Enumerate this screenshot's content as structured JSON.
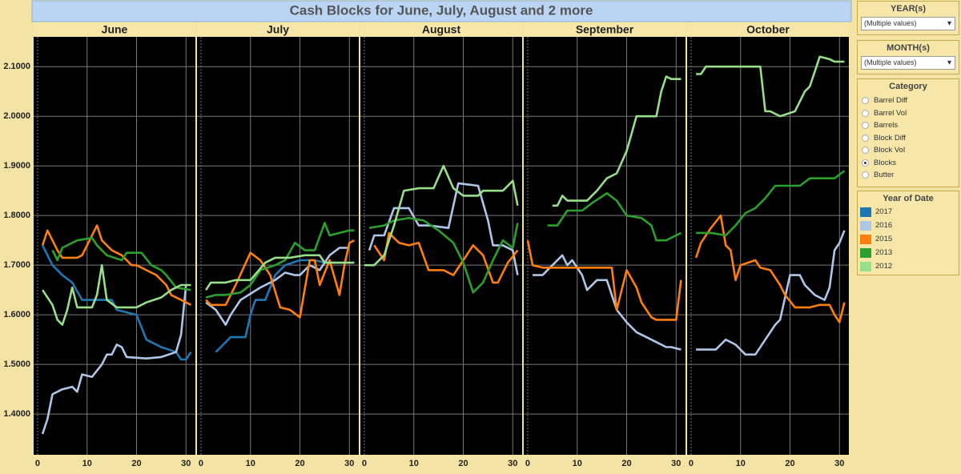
{
  "chart_data": {
    "type": "line",
    "title": "Cash Blocks for June, July, August and 2 more",
    "panels": [
      "June",
      "July",
      "August",
      "September",
      "October"
    ],
    "xlim": [
      -0.8,
      31.9
    ],
    "xticks": [
      0,
      10,
      20,
      30
    ],
    "ylim": [
      1.318,
      2.16
    ],
    "yticks": [
      {
        "value": 1.4,
        "label": "1.4000"
      },
      {
        "value": 1.5,
        "label": "1.5000"
      },
      {
        "value": 1.6,
        "label": "1.6000"
      },
      {
        "value": 1.7,
        "label": "1.7000"
      },
      {
        "value": 1.8,
        "label": "1.8000"
      },
      {
        "value": 1.9,
        "label": "1.9000"
      },
      {
        "value": 2.0,
        "label": "2.0000"
      },
      {
        "value": 2.1,
        "label": "2.1000"
      }
    ],
    "grid": true,
    "legend_title": "Year of Date",
    "series": [
      {
        "name": "2017",
        "color": "#1f77b4",
        "panels": [
          {
            "x": [
              1,
              3,
              5,
              7,
              9,
              12,
              15,
              16,
              20,
              22,
              25,
              28,
              29,
              30,
              31
            ],
            "values": [
              1.74,
              1.7,
              1.68,
              1.665,
              1.63,
              1.63,
              1.63,
              1.61,
              1.6,
              1.55,
              1.535,
              1.525,
              1.51,
              1.51,
              1.525
            ]
          },
          {
            "x": [
              3,
              4,
              6,
              9,
              10,
              11,
              13,
              15,
              17,
              20,
              23,
              25,
              27,
              30
            ],
            "values": [
              1.525,
              1.535,
              1.555,
              1.555,
              1.6,
              1.63,
              1.63,
              1.68,
              1.7,
              1.71,
              1.71,
              1.705,
              1.705,
              1.705
            ]
          },
          {
            "x": [],
            "values": []
          },
          {
            "x": [],
            "values": []
          },
          {
            "x": [],
            "values": []
          }
        ]
      },
      {
        "name": "2016",
        "color": "#aec7e8",
        "panels": [
          {
            "x": [
              1,
              2,
              3,
              5,
              7,
              8,
              9,
              11,
              13,
              14,
              15,
              16,
              17,
              18,
              22,
              25,
              28,
              29,
              30
            ],
            "values": [
              1.36,
              1.39,
              1.44,
              1.45,
              1.455,
              1.445,
              1.48,
              1.475,
              1.5,
              1.52,
              1.52,
              1.54,
              1.535,
              1.515,
              1.512,
              1.515,
              1.525,
              1.56,
              1.66
            ]
          },
          {
            "x": [
              1,
              3,
              5,
              6,
              8,
              12,
              15,
              17,
              19,
              20,
              22,
              24,
              26,
              28,
              30
            ],
            "values": [
              1.625,
              1.61,
              1.58,
              1.6,
              1.63,
              1.655,
              1.67,
              1.685,
              1.68,
              1.68,
              1.7,
              1.69,
              1.72,
              1.735,
              1.735
            ]
          },
          {
            "x": [
              1,
              2,
              4,
              6,
              9,
              11,
              13,
              17,
              19,
              23,
              25,
              26,
              28,
              30,
              31
            ],
            "values": [
              1.73,
              1.76,
              1.76,
              1.815,
              1.815,
              1.78,
              1.78,
              1.775,
              1.865,
              1.86,
              1.79,
              1.74,
              1.74,
              1.73,
              1.68
            ]
          },
          {
            "x": [
              1,
              3,
              5,
              7,
              8,
              9,
              11,
              12,
              14,
              16,
              18,
              20,
              22,
              24,
              26,
              28,
              29,
              31
            ],
            "values": [
              1.68,
              1.68,
              1.7,
              1.72,
              1.7,
              1.71,
              1.68,
              1.65,
              1.67,
              1.67,
              1.61,
              1.585,
              1.565,
              1.555,
              1.545,
              1.535,
              1.535,
              1.53
            ]
          },
          {
            "x": [
              1,
              4,
              5,
              7,
              9,
              11,
              13,
              15,
              17,
              18,
              20,
              22,
              23,
              25,
              27,
              28,
              29,
              30,
              31
            ],
            "values": [
              1.53,
              1.53,
              1.53,
              1.55,
              1.54,
              1.52,
              1.52,
              1.55,
              1.58,
              1.59,
              1.68,
              1.68,
              1.66,
              1.64,
              1.63,
              1.655,
              1.73,
              1.745,
              1.77
            ]
          }
        ]
      },
      {
        "name": "2015",
        "color": "#ff7f0e",
        "panels": [
          {
            "x": [
              1,
              2,
              4,
              5,
              8,
              9,
              10,
              12,
              13,
              15,
              17,
              19,
              20,
              22,
              24,
              26,
              27,
              29,
              31
            ],
            "values": [
              1.74,
              1.77,
              1.73,
              1.715,
              1.715,
              1.72,
              1.74,
              1.78,
              1.75,
              1.73,
              1.72,
              1.7,
              1.7,
              1.69,
              1.68,
              1.66,
              1.64,
              1.63,
              1.62
            ]
          },
          {
            "x": [
              1,
              2,
              5,
              7,
              10,
              12,
              14,
              16,
              18,
              20,
              22,
              23,
              24,
              26,
              28,
              29,
              30,
              31
            ],
            "values": [
              1.63,
              1.62,
              1.62,
              1.66,
              1.725,
              1.71,
              1.68,
              1.615,
              1.61,
              1.595,
              1.71,
              1.71,
              1.66,
              1.71,
              1.64,
              1.7,
              1.745,
              1.75
            ]
          },
          {
            "x": [
              2,
              4,
              5,
              7,
              9,
              11,
              13,
              16,
              18,
              20,
              22,
              24,
              26,
              27,
              29,
              31
            ],
            "values": [
              1.74,
              1.71,
              1.765,
              1.745,
              1.74,
              1.745,
              1.69,
              1.69,
              1.68,
              1.71,
              1.74,
              1.72,
              1.665,
              1.665,
              1.705,
              1.73
            ]
          },
          {
            "x": [
              0,
              1,
              3,
              17,
              18,
              20,
              22,
              23,
              24,
              25,
              26,
              30,
              31
            ],
            "values": [
              1.75,
              1.7,
              1.695,
              1.695,
              1.61,
              1.69,
              1.655,
              1.625,
              1.61,
              1.595,
              1.59,
              1.59,
              1.67
            ]
          },
          {
            "x": [
              1,
              2,
              4,
              6,
              7,
              8,
              9,
              10,
              13,
              14,
              16,
              18,
              19,
              21,
              24,
              26,
              28,
              29,
              30,
              31
            ],
            "values": [
              1.715,
              1.745,
              1.775,
              1.8,
              1.74,
              1.73,
              1.67,
              1.7,
              1.71,
              1.695,
              1.69,
              1.66,
              1.64,
              1.615,
              1.615,
              1.62,
              1.62,
              1.6,
              1.585,
              1.625
            ]
          }
        ]
      },
      {
        "name": "2013",
        "color": "#2ca02c",
        "panels": [
          {
            "x": [
              3,
              4,
              5,
              8,
              11,
              12,
              14,
              17,
              18,
              21,
              23,
              25,
              26,
              28,
              31
            ],
            "values": [
              1.73,
              1.71,
              1.735,
              1.75,
              1.755,
              1.74,
              1.72,
              1.71,
              1.725,
              1.725,
              1.7,
              1.69,
              1.68,
              1.655,
              1.65
            ]
          },
          {
            "x": [
              1,
              3,
              5,
              8,
              10,
              12,
              15,
              17,
              19,
              21,
              23,
              25,
              26,
              30,
              31
            ],
            "values": [
              1.635,
              1.64,
              1.64,
              1.645,
              1.66,
              1.69,
              1.7,
              1.71,
              1.745,
              1.73,
              1.73,
              1.785,
              1.76,
              1.77,
              1.77
            ]
          },
          {
            "x": [
              1,
              4,
              6,
              9,
              12,
              15,
              18,
              20,
              22,
              24,
              26,
              28,
              30,
              31
            ],
            "values": [
              1.775,
              1.78,
              1.79,
              1.795,
              1.79,
              1.77,
              1.745,
              1.705,
              1.645,
              1.665,
              1.71,
              1.75,
              1.735,
              1.785
            ]
          },
          {
            "x": [
              4,
              6,
              8,
              11,
              13,
              16,
              18,
              20,
              23,
              25,
              26,
              28,
              31
            ],
            "values": [
              1.78,
              1.78,
              1.81,
              1.81,
              1.825,
              1.845,
              1.83,
              1.8,
              1.795,
              1.78,
              1.75,
              1.75,
              1.765
            ]
          },
          {
            "x": [
              1,
              4,
              7,
              9,
              11,
              13,
              15,
              17,
              20,
              22,
              24,
              28,
              29,
              31
            ],
            "values": [
              1.765,
              1.765,
              1.76,
              1.78,
              1.805,
              1.815,
              1.835,
              1.86,
              1.86,
              1.86,
              1.875,
              1.875,
              1.875,
              1.89
            ]
          }
        ]
      },
      {
        "name": "2012",
        "color": "#98df8a",
        "panels": [
          {
            "x": [
              1,
              3,
              4,
              5,
              6,
              7,
              8,
              11,
              12,
              13,
              14,
              16,
              20,
              22,
              25,
              27,
              29,
              31
            ],
            "values": [
              1.65,
              1.62,
              1.59,
              1.58,
              1.61,
              1.655,
              1.615,
              1.615,
              1.64,
              1.7,
              1.63,
              1.615,
              1.615,
              1.625,
              1.635,
              1.65,
              1.66,
              1.66
            ]
          },
          {
            "x": [
              1,
              2,
              5,
              7,
              10,
              13,
              15,
              18,
              21,
              24,
              25,
              28,
              31
            ],
            "values": [
              1.65,
              1.665,
              1.665,
              1.67,
              1.67,
              1.705,
              1.715,
              1.715,
              1.72,
              1.72,
              1.705,
              1.705,
              1.705
            ]
          },
          {
            "x": [
              0,
              2,
              4,
              6,
              8,
              11,
              14,
              16,
              18,
              20,
              23,
              24,
              28,
              30,
              31
            ],
            "values": [
              1.7,
              1.7,
              1.72,
              1.78,
              1.85,
              1.855,
              1.855,
              1.9,
              1.855,
              1.84,
              1.84,
              1.85,
              1.85,
              1.87,
              1.82
            ]
          },
          {
            "x": [
              5,
              6,
              7,
              8,
              12,
              14,
              16,
              18,
              20,
              22,
              24,
              26,
              27,
              28,
              29,
              31
            ],
            "values": [
              1.82,
              1.82,
              1.84,
              1.83,
              1.83,
              1.85,
              1.875,
              1.885,
              1.93,
              2.0,
              2.0,
              2.0,
              2.05,
              2.08,
              2.075,
              2.075
            ]
          },
          {
            "x": [
              1,
              2,
              3,
              14,
              15,
              16,
              18,
              21,
              23,
              24,
              26,
              28,
              29,
              31
            ],
            "values": [
              2.085,
              2.085,
              2.1,
              2.1,
              2.01,
              2.01,
              2.0,
              2.01,
              2.05,
              2.06,
              2.12,
              2.115,
              2.11,
              2.11
            ]
          }
        ]
      }
    ]
  },
  "filters": {
    "year": {
      "label": "YEAR(s)",
      "value": "(Multiple values)"
    },
    "month": {
      "label": "MONTH(s)",
      "value": "(Multiple values)"
    },
    "category": {
      "label": "Category",
      "options": [
        "Barrel Diff",
        "Barrel Vol",
        "Barrels",
        "Block Diff",
        "Block Vol",
        "Blocks",
        "Butter"
      ],
      "selected": "Blocks"
    }
  }
}
